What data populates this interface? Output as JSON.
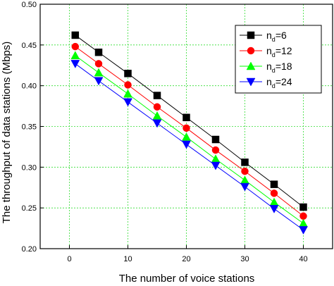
{
  "chart_data": {
    "type": "line",
    "xlabel": "The number of voice stations",
    "ylabel": "The throughput of data stations (Mbps)",
    "xlim": [
      -5,
      45
    ],
    "ylim": [
      0.2,
      0.5
    ],
    "xticks": [
      0,
      10,
      20,
      30,
      40
    ],
    "yticks": [
      0.2,
      0.25,
      0.3,
      0.35,
      0.4,
      0.45,
      0.5
    ],
    "grid": true,
    "legend_position": "top-right",
    "x": [
      1,
      5,
      10,
      15,
      20,
      25,
      30,
      35,
      40
    ],
    "series": [
      {
        "name": "nd=6",
        "legend_main": "n",
        "legend_sub": "d",
        "legend_value": "=6",
        "marker": "square",
        "color": "#000000",
        "values": [
          0.462,
          0.441,
          0.415,
          0.388,
          0.361,
          0.334,
          0.306,
          0.279,
          0.251
        ]
      },
      {
        "name": "nd=12",
        "legend_main": "n",
        "legend_sub": "d",
        "legend_value": "=12",
        "marker": "circle",
        "color": "#ff0000",
        "values": [
          0.448,
          0.427,
          0.401,
          0.374,
          0.348,
          0.321,
          0.295,
          0.268,
          0.24
        ]
      },
      {
        "name": "nd=18",
        "legend_main": "n",
        "legend_sub": "d",
        "legend_value": "=18",
        "marker": "triangle-up",
        "color": "#00ff00",
        "values": [
          0.437,
          0.416,
          0.39,
          0.363,
          0.337,
          0.31,
          0.284,
          0.257,
          0.231
        ]
      },
      {
        "name": "nd=24",
        "legend_main": "n",
        "legend_sub": "d",
        "legend_value": "=24",
        "marker": "triangle-down",
        "color": "#0000ff",
        "values": [
          0.427,
          0.406,
          0.38,
          0.354,
          0.328,
          0.302,
          0.276,
          0.249,
          0.223
        ]
      }
    ]
  }
}
